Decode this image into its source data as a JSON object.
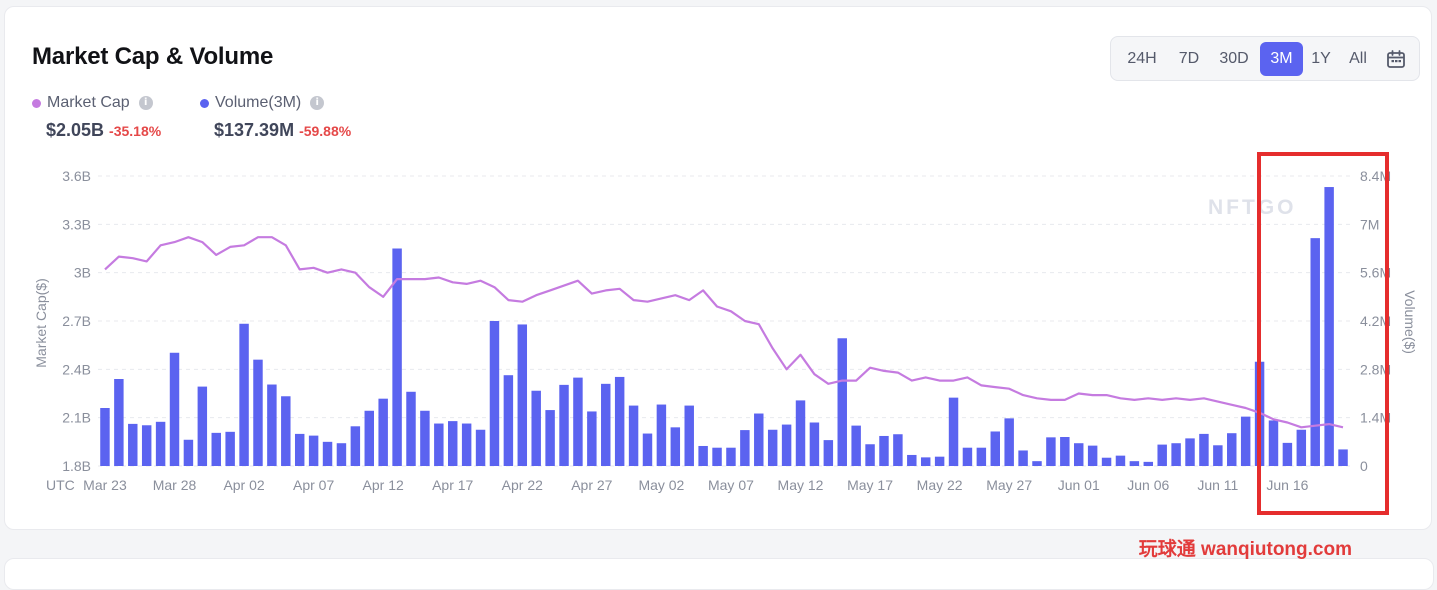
{
  "title": "Market Cap & Volume",
  "legend": {
    "market_cap": {
      "label": "Market Cap",
      "value": "$2.05B",
      "change": "-35.18%",
      "color": "#c57be0"
    },
    "volume": {
      "label": "Volume(3M)",
      "value": "$137.39M",
      "change": "-59.88%",
      "color": "#5b63f0"
    }
  },
  "info_icon": "i",
  "range_buttons": [
    "24H",
    "7D",
    "30D",
    "3M",
    "1Y",
    "All"
  ],
  "range_active": "3M",
  "calendar_icon": "calendar-icon",
  "watermark_logo": "NFTGO",
  "site_watermark": "玩球通 wanqiutong.com",
  "chart_data": {
    "type": "bar+line",
    "y_left_label": "Market Cap($)",
    "y_right_label": "Volume($)",
    "y_left_ticks": [
      "1.8B",
      "2.1B",
      "2.4B",
      "2.7B",
      "3B",
      "3.3B",
      "3.6B"
    ],
    "y_left_range": [
      1.8,
      3.6
    ],
    "y_right_ticks": [
      "0",
      "1.4M",
      "2.8M",
      "4.2M",
      "5.6M",
      "7M",
      "8.4M"
    ],
    "y_right_range": [
      0,
      8.4
    ],
    "x_prefix": "UTC",
    "x_ticks": [
      "Mar 23",
      "Mar 28",
      "Apr 02",
      "Apr 07",
      "Apr 12",
      "Apr 17",
      "Apr 22",
      "Apr 27",
      "May 02",
      "May 07",
      "May 12",
      "May 17",
      "May 22",
      "May 27",
      "Jun 01",
      "Jun 06",
      "Jun 11",
      "Jun 16"
    ],
    "start_date": "Mar 23",
    "series": [
      {
        "name": "Volume(3M)",
        "type": "bar",
        "axis": "right",
        "color": "#5b63f0",
        "values": [
          1.68,
          2.52,
          1.22,
          1.18,
          1.28,
          3.28,
          0.76,
          2.3,
          0.96,
          0.99,
          4.12,
          3.08,
          2.36,
          2.02,
          0.93,
          0.88,
          0.7,
          0.66,
          1.15,
          1.6,
          1.95,
          6.3,
          2.15,
          1.6,
          1.23,
          1.3,
          1.23,
          1.05,
          4.2,
          2.63,
          4.1,
          2.18,
          1.62,
          2.35,
          2.56,
          1.58,
          2.38,
          2.58,
          1.75,
          0.94,
          1.78,
          1.12,
          1.75,
          0.58,
          0.53,
          0.53,
          1.04,
          1.52,
          1.05,
          1.2,
          1.9,
          1.26,
          0.75,
          3.7,
          1.17,
          0.63,
          0.87,
          0.92,
          0.32,
          0.25,
          0.27,
          1.98,
          0.53,
          0.53,
          1.0,
          1.38,
          0.45,
          0.14,
          0.83,
          0.84,
          0.66,
          0.59,
          0.24,
          0.3,
          0.14,
          0.12,
          0.62,
          0.66,
          0.8,
          0.93,
          0.6,
          0.95,
          1.43,
          3.02,
          1.32,
          0.67,
          1.05,
          6.6,
          8.08,
          0.48
        ]
      },
      {
        "name": "Market Cap",
        "type": "line",
        "axis": "left",
        "color": "#c57be0",
        "values": [
          3.02,
          3.1,
          3.09,
          3.07,
          3.17,
          3.19,
          3.22,
          3.19,
          3.11,
          3.16,
          3.17,
          3.22,
          3.22,
          3.17,
          3.02,
          3.03,
          3.0,
          3.02,
          3.0,
          2.91,
          2.85,
          2.96,
          2.96,
          2.96,
          2.97,
          2.94,
          2.93,
          2.95,
          2.91,
          2.83,
          2.82,
          2.86,
          2.89,
          2.92,
          2.95,
          2.87,
          2.89,
          2.9,
          2.83,
          2.82,
          2.84,
          2.86,
          2.83,
          2.89,
          2.79,
          2.76,
          2.7,
          2.68,
          2.53,
          2.4,
          2.49,
          2.37,
          2.31,
          2.33,
          2.33,
          2.41,
          2.39,
          2.38,
          2.33,
          2.35,
          2.33,
          2.33,
          2.35,
          2.3,
          2.29,
          2.28,
          2.24,
          2.22,
          2.21,
          2.21,
          2.25,
          2.24,
          2.24,
          2.22,
          2.21,
          2.22,
          2.21,
          2.22,
          2.21,
          2.22,
          2.2,
          2.18,
          2.16,
          2.13,
          2.09,
          2.07,
          2.04,
          2.05,
          2.06,
          2.04
        ]
      }
    ]
  }
}
